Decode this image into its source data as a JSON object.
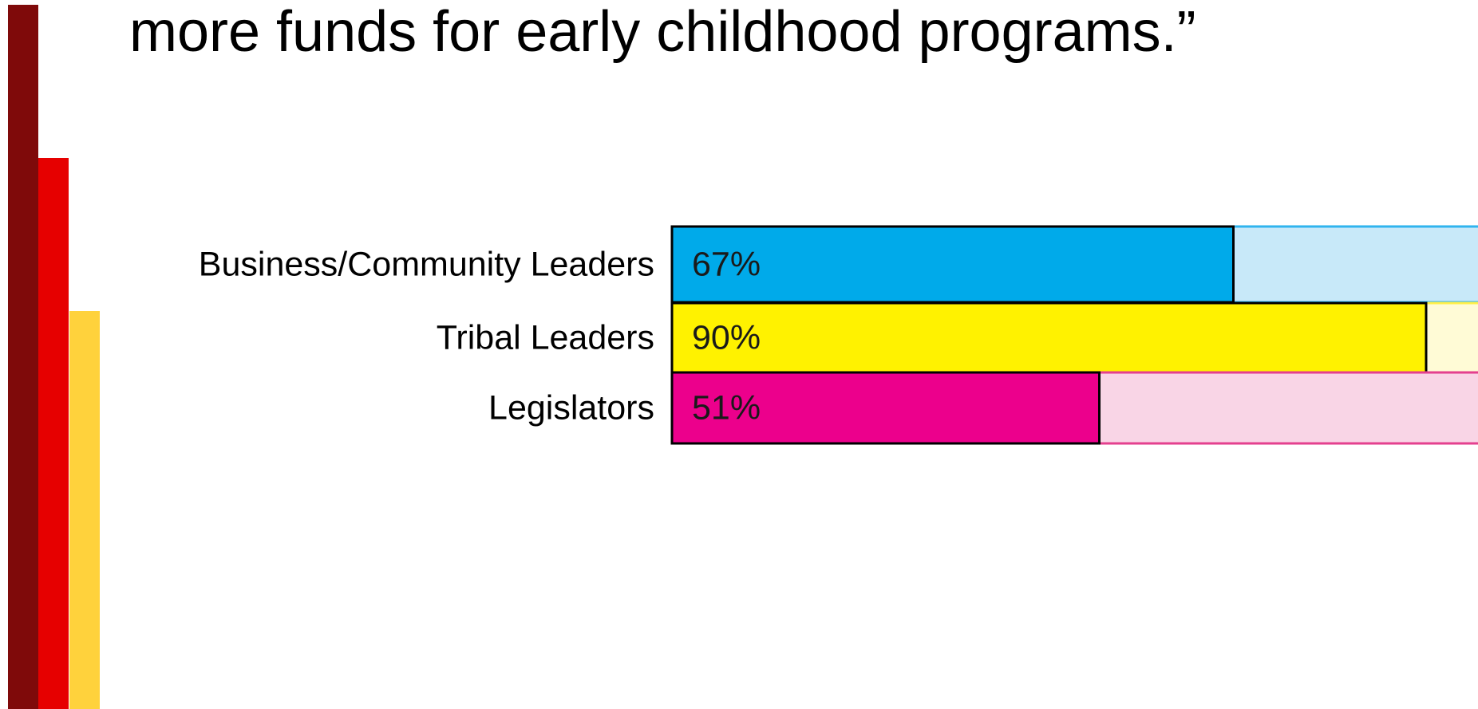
{
  "slide": {
    "title": "more funds for early childhood programs.”",
    "accent_colors": [
      "#7f0a0a",
      "#e60000",
      "#ffd23c"
    ]
  },
  "chart_data": {
    "type": "bar",
    "orientation": "horizontal",
    "stacked": true,
    "xlim": [
      0,
      100
    ],
    "categories": [
      "Business/Community Leaders",
      "Tribal Leaders",
      "Legislators"
    ],
    "values": [
      67,
      90,
      51
    ],
    "data_labels": [
      "67%",
      "90%",
      "51%"
    ],
    "colors": [
      "#00aaea",
      "#fff200",
      "#ec008c"
    ],
    "remainder_colors": [
      "#c8e9f9",
      "#fffbd6",
      "#f9d5e6"
    ],
    "remainder_borders": [
      "#30b4ee",
      "#fff04a",
      "#e4408f"
    ],
    "grid": false,
    "legend": "none"
  }
}
